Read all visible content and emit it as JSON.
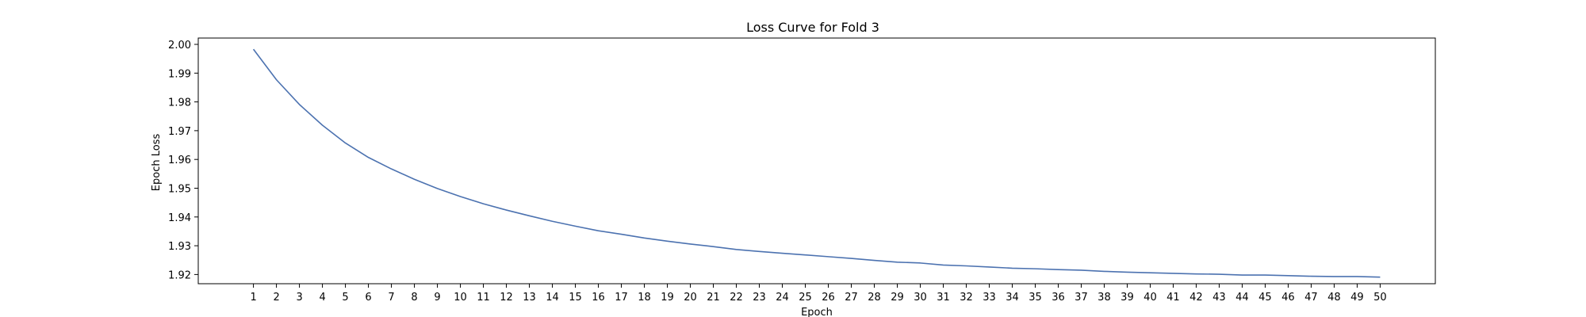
{
  "chart_data": {
    "type": "line",
    "title": "Loss Curve for Fold 3",
    "xlabel": "Epoch",
    "ylabel": "Epoch Loss",
    "x": [
      1,
      2,
      3,
      4,
      5,
      6,
      7,
      8,
      9,
      10,
      11,
      12,
      13,
      14,
      15,
      16,
      17,
      18,
      19,
      20,
      21,
      22,
      23,
      24,
      25,
      26,
      27,
      28,
      29,
      30,
      31,
      32,
      33,
      34,
      35,
      36,
      37,
      38,
      39,
      40,
      41,
      42,
      43,
      44,
      45,
      46,
      47,
      48,
      49,
      50
    ],
    "series": [
      {
        "color": "#4c72b0",
        "values": [
          1.9983,
          1.9877,
          1.9791,
          1.9719,
          1.9657,
          1.9607,
          1.9567,
          1.9531,
          1.9499,
          1.9471,
          1.9446,
          1.9424,
          1.9404,
          1.9385,
          1.9368,
          1.9352,
          1.934,
          1.9327,
          1.9316,
          1.9306,
          1.9297,
          1.9287,
          1.928,
          1.9274,
          1.9268,
          1.9262,
          1.9256,
          1.9249,
          1.9243,
          1.924,
          1.9233,
          1.923,
          1.9226,
          1.9222,
          1.922,
          1.9217,
          1.9215,
          1.9211,
          1.9208,
          1.9206,
          1.9204,
          1.9202,
          1.9201,
          1.9198,
          1.9198,
          1.9196,
          1.9194,
          1.9193,
          1.9193,
          1.9191
        ]
      }
    ],
    "xticks": [
      "1",
      "2",
      "3",
      "4",
      "5",
      "6",
      "7",
      "8",
      "9",
      "10",
      "11",
      "12",
      "13",
      "14",
      "15",
      "16",
      "17",
      "18",
      "19",
      "20",
      "21",
      "22",
      "23",
      "24",
      "25",
      "26",
      "27",
      "28",
      "29",
      "30",
      "31",
      "32",
      "33",
      "34",
      "35",
      "36",
      "37",
      "38",
      "39",
      "40",
      "41",
      "42",
      "43",
      "44",
      "45",
      "46",
      "47",
      "48",
      "49",
      "50"
    ],
    "yticks": [
      "1.92",
      "1.93",
      "1.94",
      "1.95",
      "1.96",
      "1.97",
      "1.98",
      "1.99",
      "2.00"
    ],
    "xlim": [
      -1.4,
      52.4
    ],
    "ylim": [
      1.9168,
      2.0022
    ],
    "grid": false,
    "legend": "none"
  }
}
